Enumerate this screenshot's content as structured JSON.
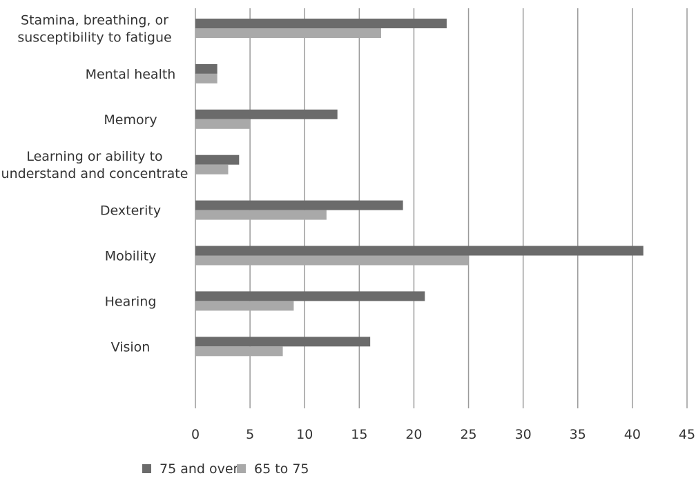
{
  "chart_data": {
    "type": "bar",
    "orientation": "horizontal",
    "categories": [
      [
        "Stamina, breathing, or",
        "susceptibility to fatigue"
      ],
      [
        "Mental health"
      ],
      [
        "Memory"
      ],
      [
        "Learning or ability to",
        "understand and concentrate"
      ],
      [
        "Dexterity"
      ],
      [
        "Mobility"
      ],
      [
        "Hearing"
      ],
      [
        "Vision"
      ]
    ],
    "series": [
      {
        "name": "75 and over",
        "color": "#6b6b6b",
        "values": [
          23,
          2,
          13,
          4,
          19,
          41,
          21,
          16
        ]
      },
      {
        "name": "65 to 75",
        "color": "#a9a9a9",
        "values": [
          17,
          2,
          5,
          3,
          12,
          25,
          9,
          8
        ]
      }
    ],
    "xlim": [
      0,
      45
    ],
    "xticks": [
      "0",
      "5",
      "10",
      "15",
      "20",
      "25",
      "30",
      "35",
      "40",
      "45"
    ],
    "grid": true,
    "legend_position": "bottom-left"
  }
}
